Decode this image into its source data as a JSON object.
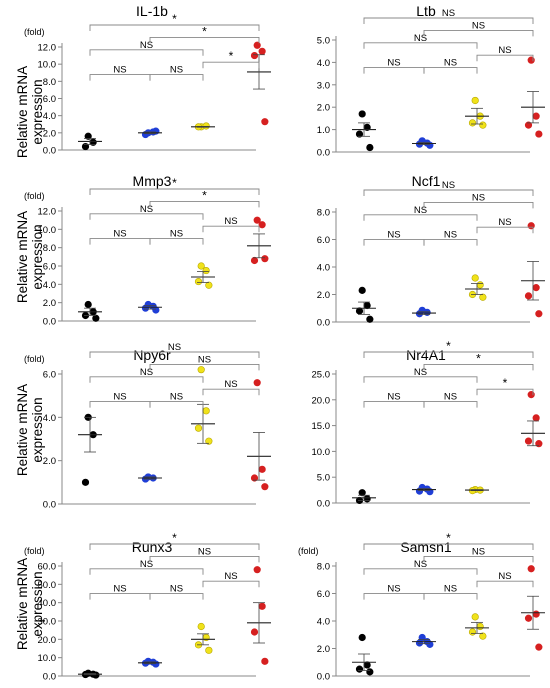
{
  "figure": {
    "y_axis_label_line1": "Relative mRNA",
    "y_axis_label_line2": "expression",
    "colors": {
      "group1": "#000000",
      "group2": "#1f3ed6",
      "group3": "#f0e21a",
      "group4": "#d62020",
      "axis": "#888888",
      "bracket": "#888888"
    }
  },
  "chart_data": [
    {
      "type": "scatter",
      "title": "IL-1b",
      "unit_label": "(fold)",
      "yticks": [
        "0.0",
        "2.0",
        "4.0",
        "6.0",
        "8.0",
        "10.0",
        "12.0"
      ],
      "ylim": [
        0,
        12
      ],
      "groups": [
        {
          "points": [
            1.6,
            0.9,
            0.4
          ],
          "mean": 1.0,
          "sem": 0.35
        },
        {
          "points": [
            2.0,
            2.1,
            1.8,
            2.2
          ],
          "mean": 2.0,
          "sem": 0.1
        },
        {
          "points": [
            2.7,
            2.8,
            2.7
          ],
          "mean": 2.7,
          "sem": 0.05
        },
        {
          "points": [
            12.2,
            11.5,
            11.0,
            3.3
          ],
          "mean": 9.1,
          "sem": 2.0
        }
      ],
      "comparisons": [
        {
          "g1": 1,
          "g2": 2,
          "label": "NS"
        },
        {
          "g1": 2,
          "g2": 3,
          "label": "NS"
        },
        {
          "g1": 3,
          "g2": 4,
          "label": "*"
        },
        {
          "g1": 1,
          "g2": 3,
          "label": "NS"
        },
        {
          "g1": 2,
          "g2": 4,
          "label": "*"
        },
        {
          "g1": 1,
          "g2": 4,
          "label": "*"
        }
      ]
    },
    {
      "type": "scatter",
      "title": "Ltb",
      "unit_label": "",
      "yticks": [
        "0.0",
        "1.0",
        "2.0",
        "3.0",
        "4.0",
        "5.0"
      ],
      "ylim": [
        0,
        5
      ],
      "groups": [
        {
          "points": [
            1.7,
            1.1,
            0.8,
            0.2
          ],
          "mean": 1.0,
          "sem": 0.3
        },
        {
          "points": [
            0.5,
            0.4,
            0.35,
            0.3
          ],
          "mean": 0.38,
          "sem": 0.05
        },
        {
          "points": [
            2.3,
            1.6,
            1.3,
            1.2
          ],
          "mean": 1.6,
          "sem": 0.35
        },
        {
          "points": [
            4.1,
            1.6,
            1.2,
            0.8
          ],
          "mean": 2.0,
          "sem": 0.7
        }
      ],
      "comparisons": [
        {
          "g1": 1,
          "g2": 2,
          "label": "NS"
        },
        {
          "g1": 2,
          "g2": 3,
          "label": "NS"
        },
        {
          "g1": 3,
          "g2": 4,
          "label": "NS"
        },
        {
          "g1": 1,
          "g2": 3,
          "label": "NS"
        },
        {
          "g1": 2,
          "g2": 4,
          "label": "NS"
        },
        {
          "g1": 1,
          "g2": 4,
          "label": "NS"
        }
      ]
    },
    {
      "type": "scatter",
      "title": "Mmp3",
      "unit_label": "(fold)",
      "yticks": [
        "0.0",
        "2.0",
        "4.0",
        "6.0",
        "8.0",
        "10.0",
        "12.0"
      ],
      "ylim": [
        0,
        12
      ],
      "groups": [
        {
          "points": [
            1.8,
            1.0,
            0.6,
            0.3
          ],
          "mean": 1.0,
          "sem": 0.4
        },
        {
          "points": [
            1.8,
            1.6,
            1.4,
            1.2
          ],
          "mean": 1.5,
          "sem": 0.2
        },
        {
          "points": [
            6.0,
            5.5,
            4.3,
            3.9
          ],
          "mean": 4.8,
          "sem": 0.6
        },
        {
          "points": [
            11.0,
            10.5,
            6.6,
            6.8
          ],
          "mean": 8.2,
          "sem": 1.3
        }
      ],
      "comparisons": [
        {
          "g1": 1,
          "g2": 2,
          "label": "NS"
        },
        {
          "g1": 2,
          "g2": 3,
          "label": "NS"
        },
        {
          "g1": 3,
          "g2": 4,
          "label": "NS"
        },
        {
          "g1": 1,
          "g2": 3,
          "label": "NS"
        },
        {
          "g1": 2,
          "g2": 4,
          "label": "*"
        },
        {
          "g1": 1,
          "g2": 4,
          "label": "*"
        }
      ]
    },
    {
      "type": "scatter",
      "title": "Ncf1",
      "unit_label": "",
      "yticks": [
        "0.0",
        "2.0",
        "4.0",
        "6.0",
        "8.0"
      ],
      "ylim": [
        0,
        8
      ],
      "groups": [
        {
          "points": [
            2.3,
            1.2,
            0.8,
            0.2
          ],
          "mean": 1.0,
          "sem": 0.45
        },
        {
          "points": [
            0.85,
            0.7,
            0.6
          ],
          "mean": 0.65,
          "sem": 0.1
        },
        {
          "points": [
            3.2,
            2.7,
            2.0,
            1.8
          ],
          "mean": 2.4,
          "sem": 0.4
        },
        {
          "points": [
            7.0,
            2.5,
            1.9,
            0.6
          ],
          "mean": 3.0,
          "sem": 1.4
        }
      ],
      "comparisons": [
        {
          "g1": 1,
          "g2": 2,
          "label": "NS"
        },
        {
          "g1": 2,
          "g2": 3,
          "label": "NS"
        },
        {
          "g1": 3,
          "g2": 4,
          "label": "NS"
        },
        {
          "g1": 1,
          "g2": 3,
          "label": "NS"
        },
        {
          "g1": 2,
          "g2": 4,
          "label": "NS"
        },
        {
          "g1": 1,
          "g2": 4,
          "label": "NS"
        }
      ]
    },
    {
      "type": "scatter",
      "title": "Npy6r",
      "unit_label": "(fold)",
      "yticks": [
        "0.0",
        "2.0",
        "4.0",
        "6.0"
      ],
      "ylim": [
        0,
        7
      ],
      "groups": [
        {
          "points": [
            4.0,
            3.2,
            1.0
          ],
          "mean": 3.2,
          "sem": 0.8
        },
        {
          "points": [
            1.25,
            1.2,
            1.15
          ],
          "mean": 1.2,
          "sem": 0.05
        },
        {
          "points": [
            6.2,
            4.3,
            3.5,
            2.9
          ],
          "mean": 3.7,
          "sem": 0.9
        },
        {
          "points": [
            5.6,
            1.6,
            1.2,
            0.8
          ],
          "mean": 2.2,
          "sem": 1.1
        }
      ],
      "comparisons": [
        {
          "g1": 1,
          "g2": 2,
          "label": "NS"
        },
        {
          "g1": 2,
          "g2": 3,
          "label": "NS"
        },
        {
          "g1": 3,
          "g2": 4,
          "label": "NS"
        },
        {
          "g1": 1,
          "g2": 3,
          "label": "NS"
        },
        {
          "g1": 2,
          "g2": 4,
          "label": "NS"
        },
        {
          "g1": 1,
          "g2": 4,
          "label": "NS"
        }
      ]
    },
    {
      "type": "scatter",
      "title": "Nr4A1",
      "unit_label": "",
      "yticks": [
        "0.0",
        "5.0",
        "10.0",
        "15.0",
        "20.0",
        "25.0"
      ],
      "ylim": [
        0,
        25
      ],
      "groups": [
        {
          "points": [
            2.0,
            0.8,
            0.5
          ],
          "mean": 1.0,
          "sem": 0.5
        },
        {
          "points": [
            3.0,
            2.7,
            2.3,
            2.2
          ],
          "mean": 2.6,
          "sem": 0.2
        },
        {
          "points": [
            2.6,
            2.5,
            2.4
          ],
          "mean": 2.5,
          "sem": 0.1
        },
        {
          "points": [
            21.0,
            16.5,
            12.0,
            11.5
          ],
          "mean": 13.5,
          "sem": 2.4
        }
      ],
      "comparisons": [
        {
          "g1": 1,
          "g2": 2,
          "label": "NS"
        },
        {
          "g1": 2,
          "g2": 3,
          "label": "NS"
        },
        {
          "g1": 3,
          "g2": 4,
          "label": "*"
        },
        {
          "g1": 1,
          "g2": 3,
          "label": "NS"
        },
        {
          "g1": 2,
          "g2": 4,
          "label": "*"
        },
        {
          "g1": 1,
          "g2": 4,
          "label": "*"
        }
      ]
    },
    {
      "type": "scatter",
      "title": "Runx3",
      "unit_label": "(fold)",
      "yticks": [
        "0.0",
        "10.0",
        "20.0",
        "30.0",
        "40.0",
        "50.0",
        "60.0"
      ],
      "ylim": [
        0,
        60
      ],
      "groups": [
        {
          "points": [
            1.5,
            1.0,
            0.8,
            0.5
          ],
          "mean": 1.0,
          "sem": 0.3
        },
        {
          "points": [
            8.0,
            7.5,
            7.0,
            6.5
          ],
          "mean": 7.2,
          "sem": 0.5
        },
        {
          "points": [
            27.0,
            21.0,
            17.0,
            14.0
          ],
          "mean": 20.0,
          "sem": 3.0
        },
        {
          "points": [
            58.0,
            38.0,
            24.0,
            8.0
          ],
          "mean": 29.0,
          "sem": 11.0
        }
      ],
      "comparisons": [
        {
          "g1": 1,
          "g2": 2,
          "label": "NS"
        },
        {
          "g1": 2,
          "g2": 3,
          "label": "NS"
        },
        {
          "g1": 3,
          "g2": 4,
          "label": "NS"
        },
        {
          "g1": 1,
          "g2": 3,
          "label": "NS"
        },
        {
          "g1": 2,
          "g2": 4,
          "label": "NS"
        },
        {
          "g1": 1,
          "g2": 4,
          "label": "*"
        }
      ]
    },
    {
      "type": "scatter",
      "title": "Samsn1",
      "unit_label": "(fold)",
      "yticks": [
        "0.0",
        "2.0",
        "4.0",
        "6.0",
        "8.0"
      ],
      "ylim": [
        0,
        9
      ],
      "groups": [
        {
          "points": [
            2.8,
            0.8,
            0.5,
            0.3
          ],
          "mean": 1.0,
          "sem": 0.6
        },
        {
          "points": [
            2.8,
            2.5,
            2.4,
            2.3
          ],
          "mean": 2.5,
          "sem": 0.15
        },
        {
          "points": [
            4.3,
            3.6,
            3.2,
            2.9
          ],
          "mean": 3.5,
          "sem": 0.4
        },
        {
          "points": [
            7.8,
            4.5,
            4.2,
            2.1
          ],
          "mean": 4.6,
          "sem": 1.2
        }
      ],
      "comparisons": [
        {
          "g1": 1,
          "g2": 2,
          "label": "NS"
        },
        {
          "g1": 2,
          "g2": 3,
          "label": "NS"
        },
        {
          "g1": 3,
          "g2": 4,
          "label": "NS"
        },
        {
          "g1": 1,
          "g2": 3,
          "label": "NS"
        },
        {
          "g1": 2,
          "g2": 4,
          "label": "NS"
        },
        {
          "g1": 1,
          "g2": 4,
          "label": "*"
        }
      ]
    }
  ]
}
